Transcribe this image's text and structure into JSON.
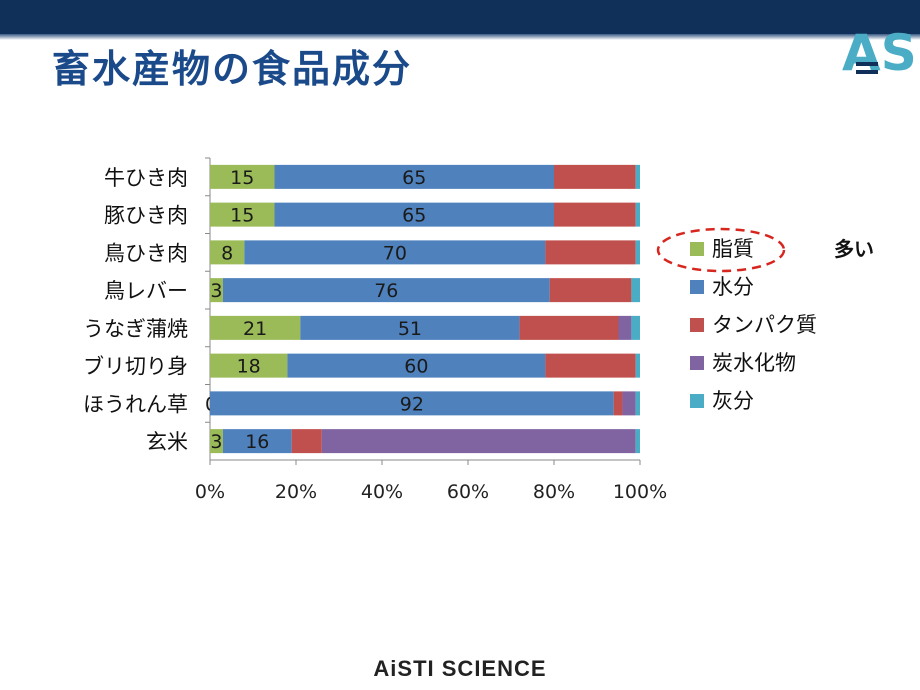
{
  "page": {
    "title": "畜水産物の食品成分",
    "footer": "AiSTI SCIENCE",
    "annotation": "多い",
    "logo_text": "AS"
  },
  "chart_data": {
    "type": "bar",
    "orientation": "horizontal",
    "stacked": "percent",
    "categories": [
      "牛ひき肉",
      "豚ひき肉",
      "鳥ひき肉",
      "鳥レバー",
      "うなぎ蒲焼",
      "ブリ切り身",
      "ほうれん草",
      "玄米"
    ],
    "series": [
      {
        "name": "脂質",
        "color": "#9bbb59",
        "values": [
          15,
          15,
          8,
          3,
          21,
          18,
          0,
          3
        ],
        "labels": [
          "15",
          "15",
          "8",
          "3",
          "21",
          "18",
          "0",
          "3"
        ]
      },
      {
        "name": "水分",
        "color": "#4f81bd",
        "values": [
          65,
          65,
          70,
          76,
          51,
          60,
          92,
          16
        ],
        "labels": [
          "65",
          "65",
          "70",
          "76",
          "51",
          "60",
          "92",
          "16"
        ]
      },
      {
        "name": "タンパク質",
        "color": "#c0504d",
        "values": [
          19,
          19,
          21,
          19,
          23,
          21,
          2,
          7
        ],
        "labels": [
          "",
          "",
          "",
          "",
          "",
          "",
          "",
          ""
        ]
      },
      {
        "name": "炭水化物",
        "color": "#8064a2",
        "values": [
          0,
          0,
          0,
          0,
          3,
          0,
          3,
          73
        ],
        "labels": [
          "",
          "",
          "",
          "",
          "",
          "",
          "",
          ""
        ]
      },
      {
        "name": "灰分",
        "color": "#4bacc6",
        "values": [
          1,
          1,
          1,
          2,
          2,
          1,
          1,
          1
        ],
        "labels": [
          "",
          "",
          "",
          "",
          "",
          "",
          "",
          ""
        ]
      }
    ],
    "xticks": [
      "0%",
      "20%",
      "40%",
      "60%",
      "80%",
      "100%"
    ],
    "xlim": [
      0,
      100
    ],
    "legend": "right",
    "highlight": "脂質"
  }
}
